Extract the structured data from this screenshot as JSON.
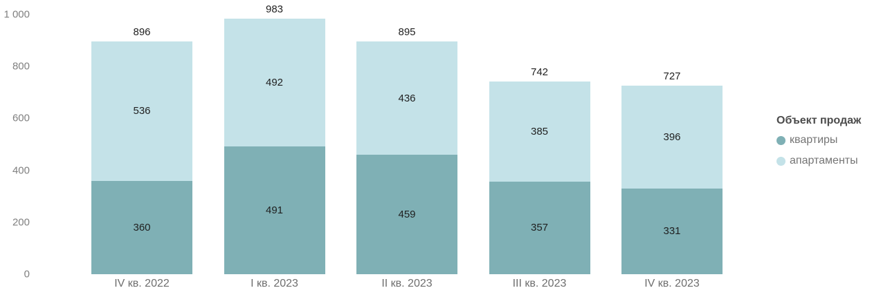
{
  "chart_data": {
    "type": "bar",
    "stacked": true,
    "title": "",
    "categories": [
      "IV кв. 2022",
      "I кв. 2023",
      "II кв. 2023",
      "III кв. 2023",
      "IV кв. 2023"
    ],
    "series": [
      {
        "name": "квартиры",
        "color": "#7fb0b5",
        "values": [
          360,
          491,
          459,
          357,
          331
        ]
      },
      {
        "name": "апартаменты",
        "color": "#c4e2e8",
        "values": [
          536,
          492,
          436,
          385,
          396
        ]
      }
    ],
    "totals": [
      896,
      983,
      895,
      742,
      727
    ],
    "ylim": [
      0,
      1000
    ],
    "yticks": [
      {
        "value": 0,
        "label": "0"
      },
      {
        "value": 200,
        "label": "200"
      },
      {
        "value": 400,
        "label": "400"
      },
      {
        "value": 600,
        "label": "600"
      },
      {
        "value": 800,
        "label": "800"
      },
      {
        "value": 1000,
        "label": "1 000"
      }
    ],
    "legend": {
      "title": "Объект продаж",
      "position": "right"
    },
    "grid": false,
    "colors": {
      "data_label": "#1f1f1f",
      "axis_tick_label": "#808080",
      "category_label": "#6e6e6e",
      "legend_title": "#4b4b4b",
      "legend_item": "#757575",
      "background": "#ffffff"
    }
  }
}
